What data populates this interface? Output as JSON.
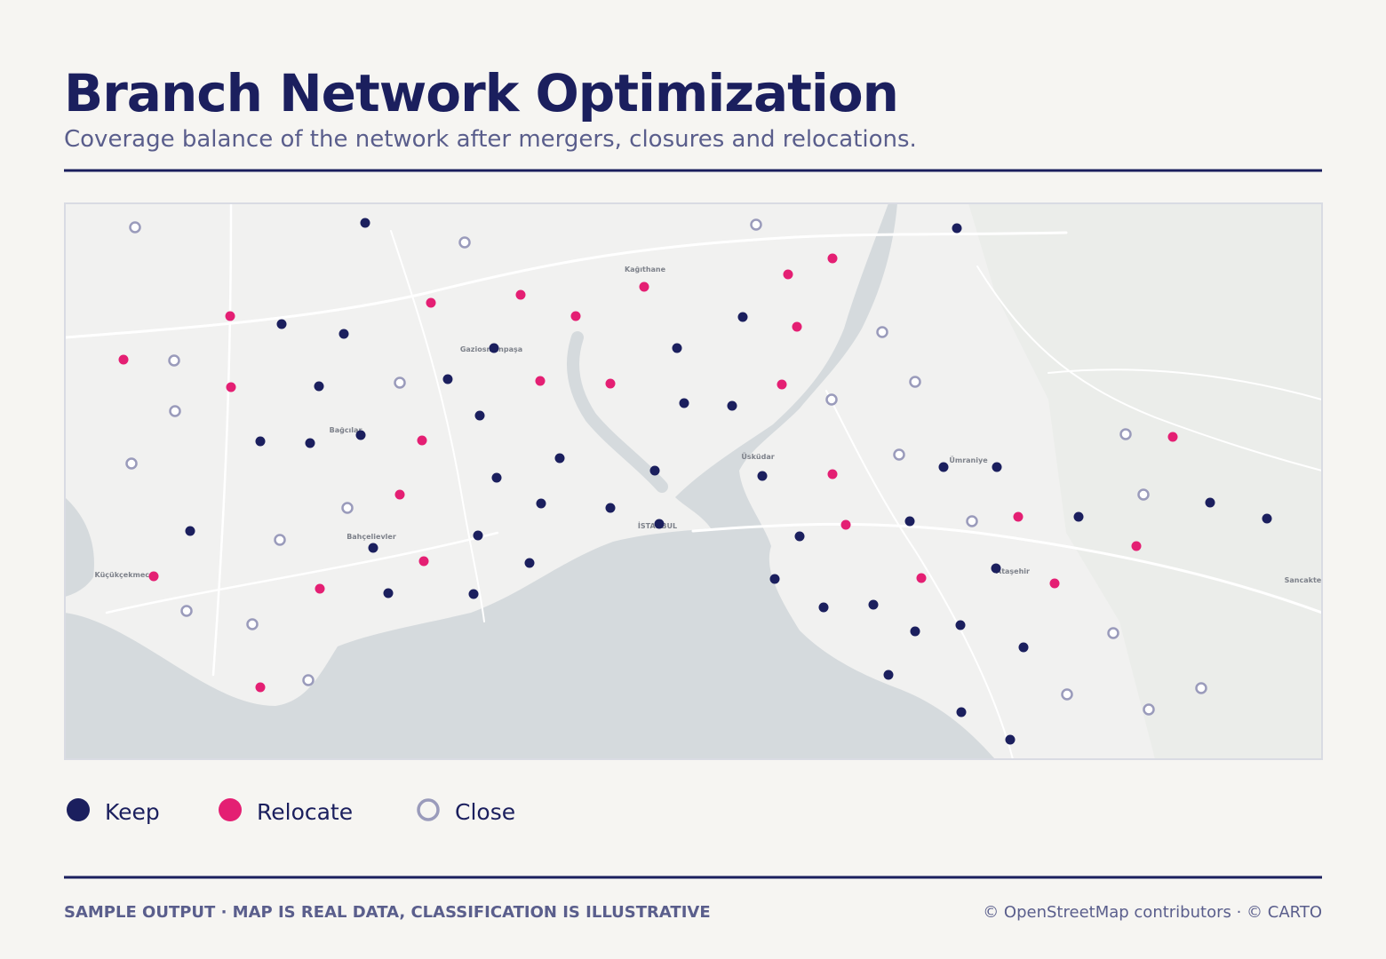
{
  "header": {
    "title": "Branch Network Optimization",
    "subtitle": "Coverage balance of the network after mergers, closures and relocations."
  },
  "map": {
    "bounds": {
      "lon": [
        28.74,
        29.306
      ],
      "lat": [
        40.8796,
        41.13
      ]
    },
    "places": [
      {
        "name": "Kağıthane",
        "lon": 29.0012,
        "lat": 41.0992
      },
      {
        "name": "Gaziosmanpaşa",
        "lon": 28.932,
        "lat": 41.0632
      },
      {
        "name": "Bağcılar",
        "lon": 28.8664,
        "lat": 41.0268
      },
      {
        "name": "Üsküdar",
        "lon": 29.052,
        "lat": 41.0148
      },
      {
        "name": "Ümraniye",
        "lon": 29.1468,
        "lat": 41.0132
      },
      {
        "name": "İSTANBUL",
        "lon": 29.0068,
        "lat": 40.9836
      },
      {
        "name": "Bahçelievler",
        "lon": 28.878,
        "lat": 40.9788
      },
      {
        "name": "Küçükçekmece",
        "lon": 28.7668,
        "lat": 40.9616
      },
      {
        "name": "Ataşehir",
        "lon": 29.1668,
        "lat": 40.9632
      },
      {
        "name": "Sancaktepe",
        "lon": 29.2996,
        "lat": 40.9592
      }
    ],
    "layers": [
      {
        "label": "Keep",
        "color": "#1b1f5e",
        "style": "filled",
        "points": [
          [
            28.8752,
            41.1212
          ],
          [
            29.1416,
            41.1188
          ],
          [
            28.8376,
            41.0756
          ],
          [
            28.8656,
            41.0712
          ],
          [
            29.0452,
            41.0788
          ],
          [
            28.9332,
            41.0648
          ],
          [
            29.0156,
            41.0648
          ],
          [
            28.8544,
            41.0476
          ],
          [
            28.9124,
            41.0508
          ],
          [
            29.0188,
            41.04
          ],
          [
            29.0404,
            41.0388
          ],
          [
            28.9268,
            41.0344
          ],
          [
            28.828,
            41.0228
          ],
          [
            28.8504,
            41.022
          ],
          [
            28.8732,
            41.0256
          ],
          [
            28.9628,
            41.0152
          ],
          [
            29.0056,
            41.0096
          ],
          [
            28.9344,
            41.0064
          ],
          [
            29.054,
            41.0072
          ],
          [
            29.1356,
            41.0112
          ],
          [
            29.1596,
            41.0112
          ],
          [
            28.9544,
            40.9948
          ],
          [
            28.9856,
            40.9928
          ],
          [
            29.0076,
            40.9856
          ],
          [
            28.7964,
            40.9824
          ],
          [
            28.926,
            40.9804
          ],
          [
            29.0708,
            40.98
          ],
          [
            29.1204,
            40.9868
          ],
          [
            29.1964,
            40.9888
          ],
          [
            29.2556,
            40.9952
          ],
          [
            29.2812,
            40.988
          ],
          [
            28.8788,
            40.9748
          ],
          [
            28.9492,
            40.968
          ],
          [
            29.1592,
            40.9656
          ],
          [
            29.0596,
            40.9608
          ],
          [
            28.8856,
            40.9544
          ],
          [
            28.924,
            40.954
          ],
          [
            29.0816,
            40.948
          ],
          [
            29.104,
            40.9492
          ],
          [
            29.1228,
            40.9372
          ],
          [
            29.1432,
            40.94
          ],
          [
            29.1716,
            40.93
          ],
          [
            29.1108,
            40.9176
          ],
          [
            29.1436,
            40.9008
          ],
          [
            29.1656,
            40.8884
          ]
        ]
      },
      {
        "label": "Relocate",
        "color": "#e41f73",
        "style": "filled",
        "points": [
          [
            29.0856,
            41.1052
          ],
          [
            29.0656,
            41.098
          ],
          [
            29.0008,
            41.0924
          ],
          [
            28.9452,
            41.0888
          ],
          [
            28.9048,
            41.0852
          ],
          [
            28.97,
            41.0792
          ],
          [
            28.8144,
            41.0792
          ],
          [
            29.0696,
            41.0744
          ],
          [
            28.7664,
            41.0596
          ],
          [
            28.8148,
            41.0472
          ],
          [
            28.954,
            41.05
          ],
          [
            28.9856,
            41.0488
          ],
          [
            29.0628,
            41.0484
          ],
          [
            28.9008,
            41.0232
          ],
          [
            29.2388,
            41.0248
          ],
          [
            28.8908,
            40.9988
          ],
          [
            29.0856,
            41.008
          ],
          [
            29.0916,
            40.9852
          ],
          [
            29.1692,
            40.9888
          ],
          [
            29.2224,
            40.9756
          ],
          [
            28.78,
            40.962
          ],
          [
            28.9016,
            40.9688
          ],
          [
            28.8548,
            40.9564
          ],
          [
            29.1256,
            40.9612
          ],
          [
            29.1856,
            40.9588
          ],
          [
            28.828,
            40.912
          ]
        ]
      },
      {
        "label": "Close",
        "color": "#9a9bbb",
        "style": "ring",
        "points": [
          [
            28.7716,
            41.1192
          ],
          [
            28.92,
            41.1124
          ],
          [
            29.0512,
            41.1204
          ],
          [
            29.108,
            41.072
          ],
          [
            28.7892,
            41.0592
          ],
          [
            28.8908,
            41.0492
          ],
          [
            29.1228,
            41.0496
          ],
          [
            29.0852,
            41.0416
          ],
          [
            28.7896,
            41.0364
          ],
          [
            29.2176,
            41.026
          ],
          [
            28.77,
            41.0128
          ],
          [
            29.1156,
            41.0168
          ],
          [
            29.2256,
            40.9988
          ],
          [
            28.8672,
            40.9928
          ],
          [
            29.1484,
            40.9868
          ],
          [
            28.8368,
            40.9784
          ],
          [
            28.7948,
            40.9464
          ],
          [
            28.8244,
            40.9404
          ],
          [
            29.212,
            40.9364
          ],
          [
            28.8496,
            40.9152
          ],
          [
            29.1912,
            40.9088
          ],
          [
            29.2516,
            40.9116
          ],
          [
            29.228,
            40.902
          ]
        ]
      }
    ]
  },
  "footer": {
    "note": "SAMPLE OUTPUT · MAP IS REAL DATA, CLASSIFICATION IS ILLUSTRATIVE",
    "credit": "© OpenStreetMap contributors · © CARTO"
  }
}
